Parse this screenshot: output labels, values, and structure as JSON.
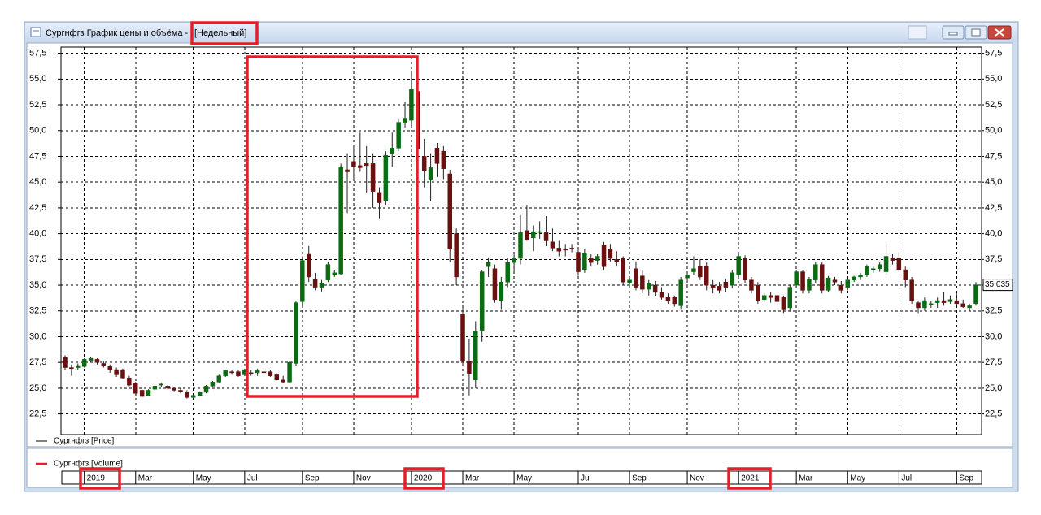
{
  "window": {
    "title": "Сургнфгз График цены и объёма -",
    "period": "[Недельный]"
  },
  "chart_data": {
    "type": "candlestick",
    "ylim": [
      20.5,
      58.1
    ],
    "yticks": [
      {
        "value": 22.5,
        "label": "22,5"
      },
      {
        "value": 25,
        "label": "25,0"
      },
      {
        "value": 27.5,
        "label": "27,5"
      },
      {
        "value": 30,
        "label": "30,0"
      },
      {
        "value": 32.5,
        "label": "32,5"
      },
      {
        "value": 35,
        "label": "35,0"
      },
      {
        "value": 37.5,
        "label": "37,5"
      },
      {
        "value": 40,
        "label": "40,0"
      },
      {
        "value": 42.5,
        "label": "42,5"
      },
      {
        "value": 45,
        "label": "45,0"
      },
      {
        "value": 47.5,
        "label": "47,5"
      },
      {
        "value": 50,
        "label": "50,0"
      },
      {
        "value": 52.5,
        "label": "52,5"
      },
      {
        "value": 55,
        "label": "55,0"
      },
      {
        "value": 57.5,
        "label": "57,5"
      }
    ],
    "grid": true,
    "categories": [
      null,
      null,
      null,
      "2019",
      null,
      null,
      null,
      null,
      null,
      null,
      null,
      "Mar",
      null,
      null,
      null,
      null,
      null,
      null,
      null,
      null,
      "May",
      null,
      null,
      null,
      null,
      null,
      null,
      null,
      "Jul",
      null,
      null,
      null,
      null,
      null,
      null,
      null,
      null,
      "Sep",
      null,
      null,
      null,
      null,
      null,
      null,
      null,
      "Nov",
      null,
      null,
      null,
      null,
      null,
      null,
      null,
      null,
      "2020",
      null,
      null,
      null,
      null,
      null,
      null,
      null,
      "Mar",
      null,
      null,
      null,
      null,
      null,
      null,
      null,
      "May",
      null,
      null,
      null,
      null,
      null,
      null,
      null,
      null,
      null,
      "Jul",
      null,
      null,
      null,
      null,
      null,
      null,
      null,
      "Sep",
      null,
      null,
      null,
      null,
      null,
      null,
      null,
      null,
      "Nov",
      null,
      null,
      null,
      null,
      null,
      null,
      null,
      "2021",
      null,
      null,
      null,
      null,
      null,
      null,
      null,
      null,
      "Mar",
      null,
      null,
      null,
      null,
      null,
      null,
      null,
      "May",
      null,
      null,
      null,
      null,
      null,
      null,
      null,
      "Jul",
      null,
      null,
      null,
      null,
      null,
      null,
      null,
      null,
      "Sep",
      null,
      null,
      null
    ],
    "series": [
      {
        "name": "Сургнфгз [Price]",
        "up_color": "#0b6b12",
        "down_color": "#6a1010",
        "wick_color": "#222222",
        "ohlc": [
          [
            28,
            28.2,
            26.8,
            27
          ],
          [
            27,
            27.3,
            26.2,
            26.9
          ],
          [
            27,
            27.4,
            26.8,
            27.2
          ],
          [
            27.1,
            27.9,
            27,
            27.8
          ],
          [
            27.7,
            28,
            27.5,
            27.9
          ],
          [
            27.8,
            27.9,
            27.3,
            27.5
          ],
          [
            27.4,
            27.6,
            27,
            27.2
          ],
          [
            27.1,
            27.3,
            26.5,
            26.8
          ],
          [
            26.8,
            27,
            26.1,
            26.3
          ],
          [
            26.8,
            26.9,
            25.9,
            26
          ],
          [
            26,
            26.2,
            25.2,
            25.3
          ],
          [
            25.5,
            25.6,
            24.4,
            24.5
          ],
          [
            24.8,
            24.9,
            24.1,
            24.2
          ],
          [
            24.3,
            24.9,
            24.2,
            24.8
          ],
          [
            24.9,
            25.3,
            24.8,
            25.2
          ],
          [
            25.3,
            25.5,
            25.1,
            25.4
          ],
          [
            25.2,
            25.3,
            24.9,
            25
          ],
          [
            25,
            25.1,
            24.7,
            24.8
          ],
          [
            24.8,
            25,
            24.5,
            24.7
          ],
          [
            24.6,
            24.8,
            24,
            24.1
          ],
          [
            24.1,
            24.4,
            24,
            24.3
          ],
          [
            24.3,
            24.7,
            24.2,
            24.6
          ],
          [
            24.6,
            25.3,
            24.5,
            25.2
          ],
          [
            25.2,
            25.7,
            25.1,
            25.6
          ],
          [
            25.6,
            26.3,
            25.5,
            26.2
          ],
          [
            26.2,
            26.8,
            26.1,
            26.7
          ],
          [
            26.6,
            26.8,
            26.3,
            26.5
          ],
          [
            26.6,
            26.8,
            26.1,
            26.2
          ],
          [
            26.3,
            26.9,
            26.2,
            26.8
          ],
          [
            26.5,
            26.8,
            26.2,
            26.4
          ],
          [
            26.5,
            26.9,
            26.2,
            26.7
          ],
          [
            26.6,
            26.8,
            26.3,
            26.5
          ],
          [
            26.6,
            26.8,
            26.1,
            26.2
          ],
          [
            26.3,
            26.5,
            25.7,
            25.8
          ],
          [
            25.8,
            26.2,
            25.5,
            25.6
          ],
          [
            25.6,
            27.6,
            25.5,
            27.5
          ],
          [
            27.4,
            33.5,
            27.2,
            33.3
          ],
          [
            33.4,
            37.8,
            33,
            37.4
          ],
          [
            38,
            38.8,
            35.3,
            35.8
          ],
          [
            35.6,
            36.2,
            34.5,
            34.8
          ],
          [
            34.8,
            35.5,
            34.4,
            35.2
          ],
          [
            35.5,
            37.3,
            35.3,
            37
          ],
          [
            36,
            36.5,
            35.8,
            36.2
          ],
          [
            36.1,
            46.8,
            36,
            46.5
          ],
          [
            46.2,
            47.8,
            42,
            46
          ],
          [
            47,
            48.5,
            45.2,
            46.5
          ],
          [
            46.6,
            49.8,
            46,
            46.4
          ],
          [
            46.8,
            48.5,
            44,
            46.6
          ],
          [
            46.8,
            47.8,
            42.5,
            44.1
          ],
          [
            44,
            44.5,
            41.5,
            43
          ],
          [
            43.2,
            48,
            42.8,
            47.6
          ],
          [
            47.8,
            49.8,
            46.5,
            48.3
          ],
          [
            48.3,
            51.2,
            48,
            50.8
          ],
          [
            50.8,
            52.8,
            50.3,
            51.2
          ],
          [
            51,
            55.6,
            50.5,
            54
          ],
          [
            53.8,
            54.8,
            47.5,
            48.2
          ],
          [
            47.5,
            49.2,
            44.5,
            46.1
          ],
          [
            45.2,
            47.8,
            43.2,
            46.4
          ],
          [
            48.3,
            48.8,
            45.5,
            46.8
          ],
          [
            48,
            48.5,
            45.3,
            46.3
          ],
          [
            45.8,
            46.2,
            37.2,
            38.5
          ],
          [
            40,
            40.5,
            35,
            35.8
          ],
          [
            32.2,
            32.8,
            27.3,
            27.6
          ],
          [
            27.6,
            29.8,
            24.3,
            26.4
          ],
          [
            25.8,
            31.5,
            25,
            30.5
          ],
          [
            30.6,
            36.5,
            29.5,
            36.3
          ],
          [
            36.8,
            37.7,
            35.8,
            37.2
          ],
          [
            36.6,
            37,
            33.3,
            33.6
          ],
          [
            33.5,
            35.8,
            32.6,
            35.3
          ],
          [
            35.3,
            37.6,
            34.8,
            37.2
          ],
          [
            37.2,
            38,
            36.3,
            37.6
          ],
          [
            37.6,
            41.8,
            37,
            40.1
          ],
          [
            40.3,
            42.8,
            39.3,
            39.4
          ],
          [
            39.6,
            40.8,
            38.3,
            40.2
          ],
          [
            40.1,
            41.2,
            39.5,
            40.2
          ],
          [
            40.1,
            41.7,
            38.8,
            39.3
          ],
          [
            39.2,
            40.5,
            38.3,
            38.6
          ],
          [
            38.6,
            39.3,
            37.8,
            38.3
          ],
          [
            38.5,
            39,
            37.8,
            38.4
          ],
          [
            38.6,
            39,
            38.2,
            38.5
          ],
          [
            38.2,
            38.5,
            35.9,
            36.3
          ],
          [
            36.5,
            38.5,
            36.2,
            38.1
          ],
          [
            37.6,
            38,
            36.8,
            37.2
          ],
          [
            37.4,
            38,
            37,
            37.8
          ],
          [
            38.9,
            39.2,
            36.5,
            36.8
          ],
          [
            38.5,
            39,
            37.3,
            37.6
          ],
          [
            37.5,
            38.3,
            36.8,
            37.3
          ],
          [
            37.6,
            37.8,
            35,
            35.3
          ],
          [
            35.2,
            35.8,
            34.8,
            35.5
          ],
          [
            36.6,
            37.3,
            34.5,
            34.8
          ],
          [
            35.9,
            36.5,
            34.2,
            34.6
          ],
          [
            34.6,
            35.5,
            34,
            35.2
          ],
          [
            35,
            35.4,
            33.9,
            34.3
          ],
          [
            34.3,
            34.8,
            33.6,
            33.8
          ],
          [
            33.8,
            34.2,
            33.2,
            33.5
          ],
          [
            33.8,
            34,
            32.9,
            33.2
          ],
          [
            33,
            35.8,
            32.6,
            35.5
          ],
          [
            35.7,
            36.3,
            35.3,
            36
          ],
          [
            36.3,
            37.8,
            36,
            36.6
          ],
          [
            36.8,
            37.5,
            35.5,
            35.8
          ],
          [
            36.8,
            37.2,
            34.5,
            35
          ],
          [
            35,
            35.5,
            34.2,
            34.7
          ],
          [
            34.9,
            35.3,
            34.2,
            34.5
          ],
          [
            35.3,
            35.6,
            34.3,
            34.8
          ],
          [
            35,
            36.5,
            34.7,
            36.2
          ],
          [
            36,
            38,
            35.8,
            37.8
          ],
          [
            37.6,
            37.9,
            35.2,
            35.5
          ],
          [
            35.5,
            35.8,
            34.2,
            34.5
          ],
          [
            35,
            35.3,
            33.2,
            33.5
          ],
          [
            33.6,
            34.2,
            33.4,
            34
          ],
          [
            34,
            34.3,
            33.3,
            33.8
          ],
          [
            34,
            34.3,
            33.2,
            33.4
          ],
          [
            33.8,
            34,
            32.3,
            32.6
          ],
          [
            32.8,
            35,
            32.5,
            34.8
          ],
          [
            35,
            36.5,
            34.8,
            36.3
          ],
          [
            36.3,
            36.5,
            34.2,
            34.5
          ],
          [
            34.5,
            35.8,
            34.2,
            35.6
          ],
          [
            35.5,
            37.3,
            35.2,
            37
          ],
          [
            37,
            37.2,
            34.2,
            34.5
          ],
          [
            34.5,
            35.9,
            34.3,
            35.7
          ],
          [
            35.5,
            35.8,
            35,
            35.3
          ],
          [
            35,
            35.4,
            34.2,
            34.5
          ],
          [
            34.8,
            35.6,
            34.5,
            35.5
          ],
          [
            35.5,
            35.9,
            35.3,
            35.8
          ],
          [
            35.8,
            36.2,
            35.5,
            36
          ],
          [
            36,
            37,
            35.8,
            36.8
          ],
          [
            36.5,
            36.9,
            36.2,
            36.6
          ],
          [
            36.6,
            37.2,
            36.3,
            37
          ],
          [
            36.3,
            39,
            36,
            37.8
          ],
          [
            37.6,
            38,
            37,
            37.4
          ],
          [
            37.6,
            38.2,
            36.3,
            36.5
          ],
          [
            36.5,
            36.8,
            34.8,
            35.5
          ],
          [
            35.5,
            35.8,
            33.2,
            33.5
          ],
          [
            33.3,
            33.5,
            32.3,
            32.8
          ],
          [
            32.8,
            33.8,
            32.5,
            33.5
          ],
          [
            33.1,
            33.5,
            32.8,
            33.2
          ],
          [
            33.3,
            33.8,
            32.8,
            33.5
          ],
          [
            33.5,
            34.3,
            33,
            33.3
          ],
          [
            33.4,
            34,
            33.2,
            33.6
          ],
          [
            33.5,
            34.2,
            33,
            33.2
          ],
          [
            33.2,
            33.6,
            32.8,
            32.9
          ],
          [
            32.8,
            33.2,
            32.5,
            33
          ],
          [
            33.2,
            35.3,
            33,
            35.035
          ]
        ],
        "legend_color": "#000000"
      },
      {
        "name": "Сургнфгз [Volume]",
        "legend_color": "#e3202a"
      }
    ],
    "last_price": {
      "value": 35.035,
      "label": "35,035"
    }
  }
}
